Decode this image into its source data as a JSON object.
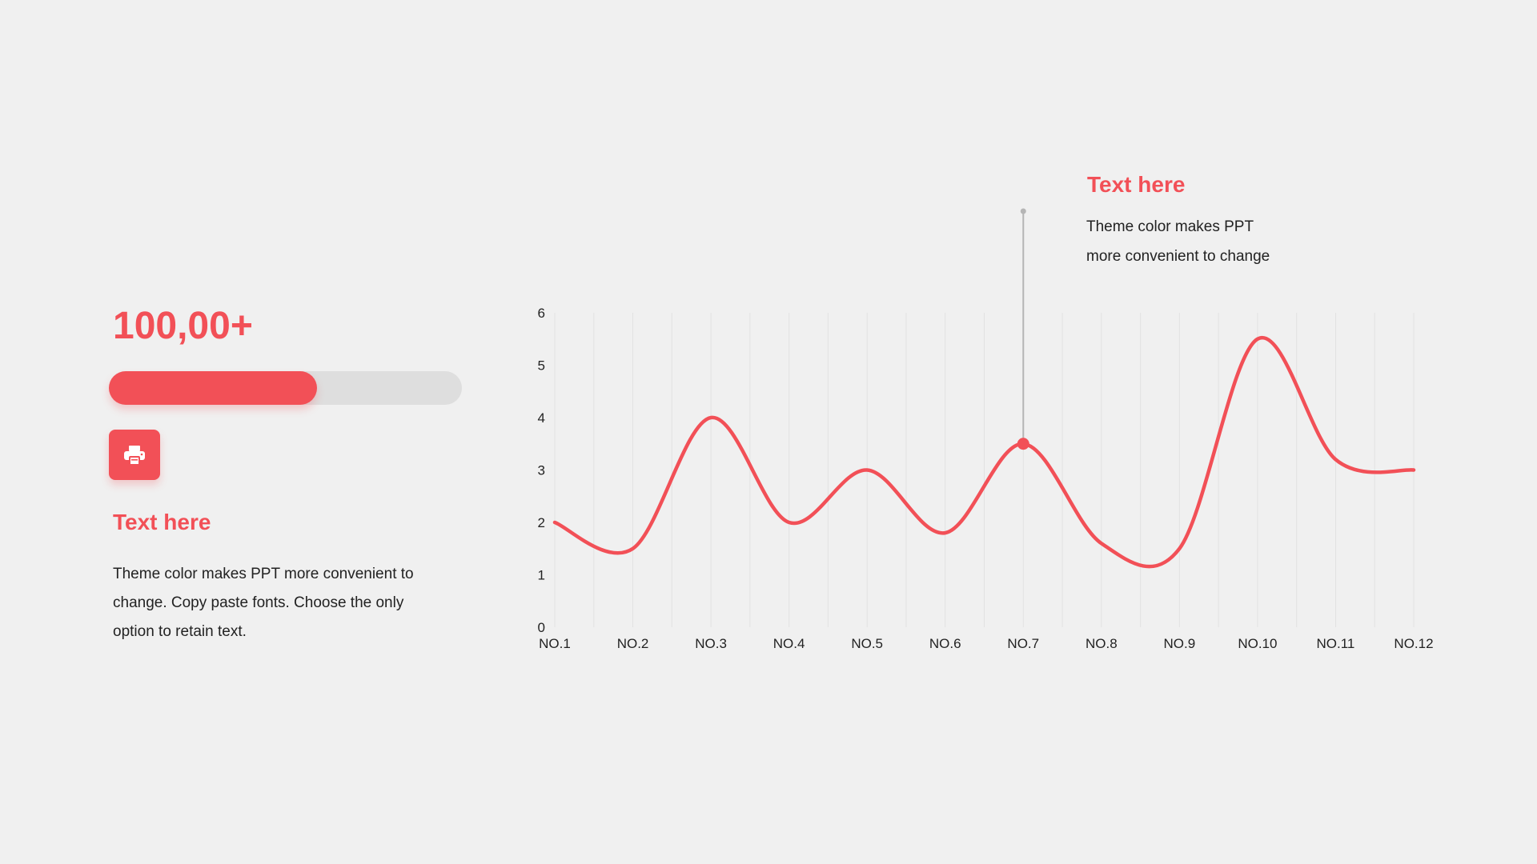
{
  "stat": {
    "value": "100,00+",
    "progress_fraction": 0.59
  },
  "feature": {
    "icon": "printer-icon",
    "heading": "Text here",
    "body": "Theme color makes PPT more convenient to change. Copy paste fonts. Choose the only option to retain text."
  },
  "callout": {
    "heading": "Text here",
    "line1": "Theme color makes PPT",
    "line2": "more convenient to change",
    "category": "NO.7"
  },
  "colors": {
    "accent": "#f25057",
    "track": "#dedede",
    "text": "#222222",
    "background": "#f0f0f0"
  },
  "chart_data": {
    "type": "line",
    "categories": [
      "NO.1",
      "NO.2",
      "NO.3",
      "NO.4",
      "NO.5",
      "NO.6",
      "NO.7",
      "NO.8",
      "NO.9",
      "NO.10",
      "NO.11",
      "NO.12"
    ],
    "series": [
      {
        "values": [
          2.0,
          1.5,
          4.0,
          2.0,
          3.0,
          1.8,
          3.5,
          1.6,
          1.5,
          5.5,
          3.2,
          3.0
        ]
      }
    ],
    "highlight_index": 6,
    "ylim": [
      0,
      6
    ],
    "yticks": [
      0,
      1,
      2,
      3,
      4,
      5,
      6
    ],
    "grid": "vertical",
    "smooth": true
  }
}
